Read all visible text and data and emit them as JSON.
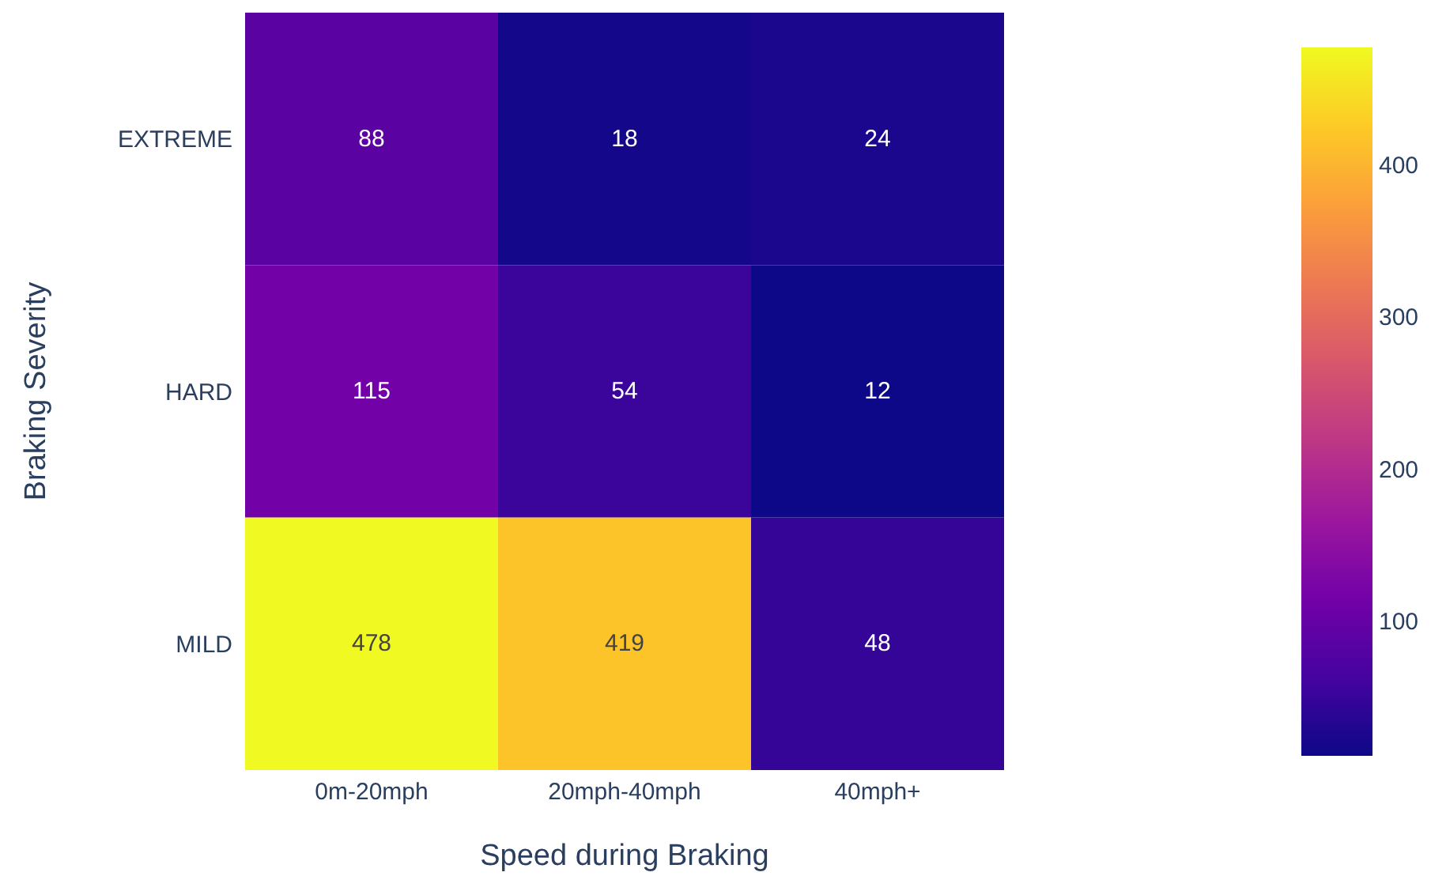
{
  "chart_data": {
    "type": "heatmap",
    "xlabel": "Speed during Braking",
    "ylabel": "Braking Severity",
    "categories": [
      "0m-20mph",
      "20mph-40mph",
      "40mph+"
    ],
    "y_categories": [
      "EXTREME",
      "HARD",
      "MILD"
    ],
    "cells": [
      [
        88,
        18,
        24
      ],
      [
        115,
        54,
        12
      ],
      [
        478,
        419,
        48
      ]
    ],
    "clim": [
      12,
      478
    ],
    "cticks": [
      100,
      200,
      300,
      400
    ],
    "data_labels": true
  }
}
